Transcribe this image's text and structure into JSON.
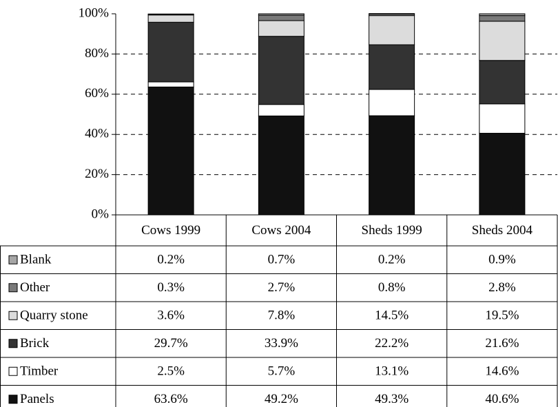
{
  "chart_data": {
    "type": "stacked_bar_table",
    "categories": [
      "Cows 1999",
      "Cows 2004",
      "Sheds 1999",
      "Sheds 2004"
    ],
    "series": [
      {
        "name": "Blank",
        "color": "#a6a6a6",
        "values": [
          0.2,
          0.7,
          0.2,
          0.9
        ],
        "value_labels": [
          "0.2%",
          "0.7%",
          "0.2%",
          "0.9%"
        ]
      },
      {
        "name": "Other",
        "color": "#7a7a7a",
        "values": [
          0.3,
          2.7,
          0.8,
          2.8
        ],
        "value_labels": [
          "0.3%",
          "2.7%",
          "0.8%",
          "2.8%"
        ]
      },
      {
        "name": "Quarry stone",
        "color": "#dcdcdc",
        "values": [
          3.6,
          7.8,
          14.5,
          19.5
        ],
        "value_labels": [
          "3.6%",
          "7.8%",
          "14.5%",
          "19.5%"
        ]
      },
      {
        "name": "Brick",
        "color": "#333333",
        "values": [
          29.7,
          33.9,
          22.2,
          21.6
        ],
        "value_labels": [
          "29.7%",
          "33.9%",
          "22.2%",
          "21.6%"
        ]
      },
      {
        "name": "Timber",
        "color": "#ffffff",
        "values": [
          2.5,
          5.7,
          13.1,
          14.6
        ],
        "value_labels": [
          "2.5%",
          "5.7%",
          "13.1%",
          "14.6%"
        ]
      },
      {
        "name": "Panels",
        "color": "#111111",
        "values": [
          63.6,
          49.2,
          49.3,
          40.6
        ],
        "value_labels": [
          "63.6%",
          "49.2%",
          "49.3%",
          "40.6%"
        ]
      }
    ],
    "ylim": [
      0,
      100
    ],
    "yticks": [
      {
        "value": 0,
        "label": "0%"
      },
      {
        "value": 20,
        "label": "20%"
      },
      {
        "value": 40,
        "label": "40%"
      },
      {
        "value": 60,
        "label": "60%"
      },
      {
        "value": 80,
        "label": "80%"
      },
      {
        "value": 100,
        "label": "100%"
      }
    ],
    "grid": true
  }
}
